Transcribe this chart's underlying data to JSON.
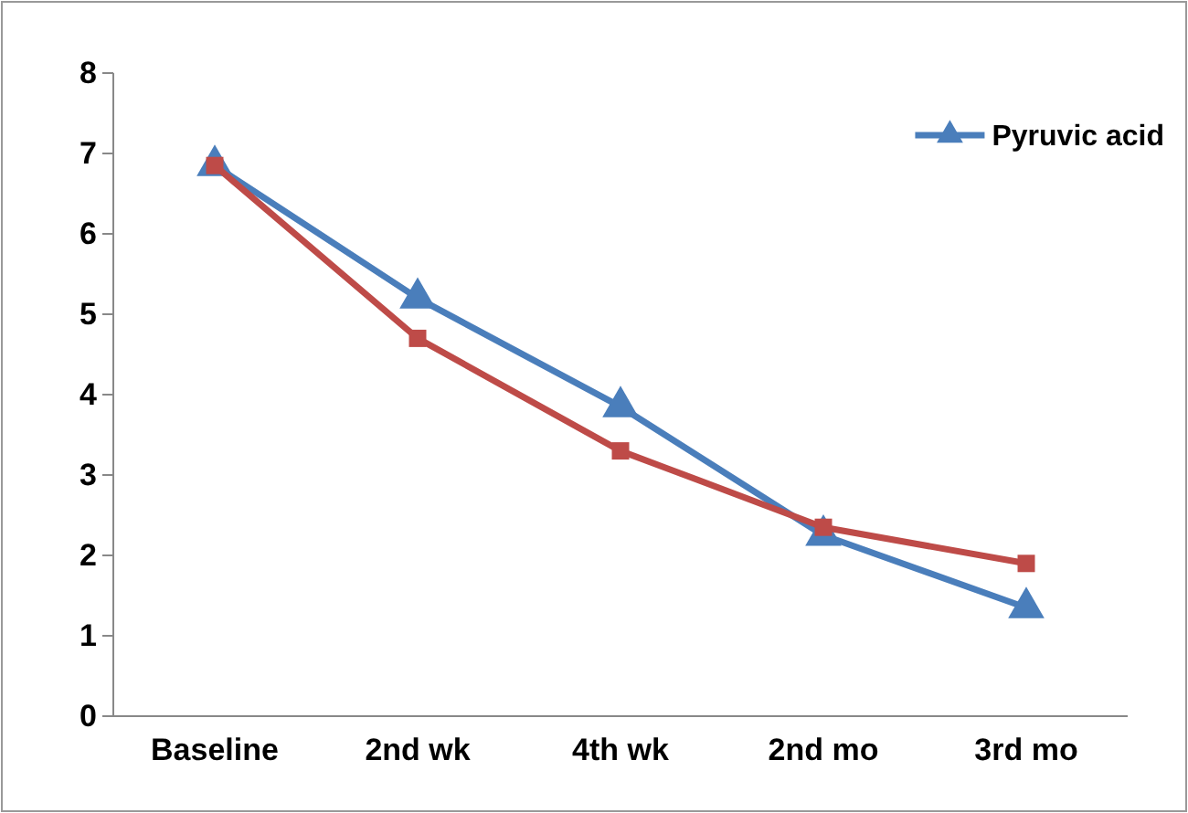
{
  "chart_data": {
    "type": "line",
    "categories": [
      "Baseline",
      "2nd wk",
      "4th wk",
      "2nd mo",
      "3rd mo"
    ],
    "series": [
      {
        "name": "Pyruvic acid",
        "color": "#4a7ebb",
        "marker": "triangle",
        "values": [
          6.85,
          5.2,
          3.85,
          2.25,
          1.35
        ]
      },
      {
        "color": "#be4b48",
        "marker": "square",
        "values": [
          6.85,
          4.7,
          3.3,
          2.35,
          1.9
        ]
      }
    ],
    "ylim": [
      0,
      8
    ],
    "yticks": [
      0,
      1,
      2,
      3,
      4,
      5,
      6,
      7,
      8
    ],
    "grid": false,
    "legend": "top right"
  }
}
